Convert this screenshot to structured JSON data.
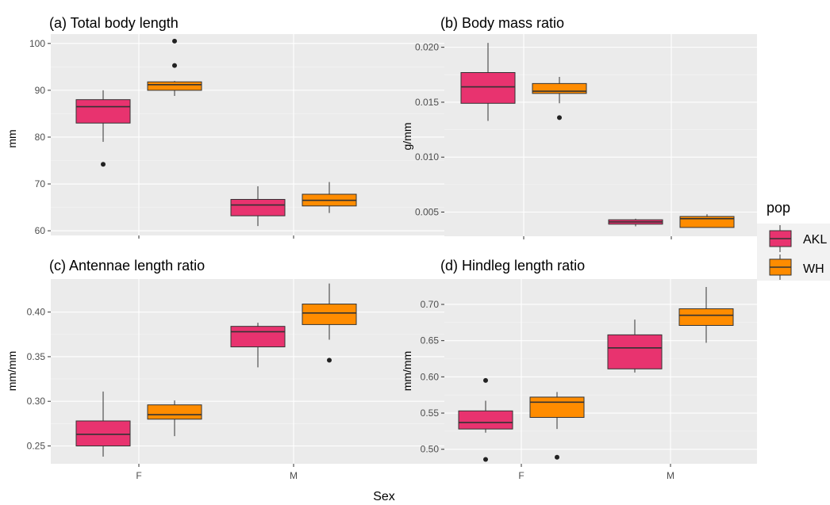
{
  "colors": {
    "AKL": "#E8336F",
    "WH": "#FF8C00",
    "panel_bg": "#EBEBEB",
    "grid_major": "#FFFFFF",
    "grid_minor": "#F5F5F5"
  },
  "legend": {
    "title": "pop",
    "items": [
      "AKL",
      "WH"
    ]
  },
  "xlabel": "Sex",
  "chart_data": [
    {
      "type": "box",
      "title": "(a) Total body length",
      "ylabel": "mm",
      "categories": [
        "F",
        "M"
      ],
      "ylim": [
        59,
        102
      ],
      "yticks": [
        60,
        70,
        80,
        90,
        100
      ],
      "ytick_labels": [
        "60",
        "70",
        "80",
        "90",
        "100"
      ],
      "series": [
        {
          "name": "AKL",
          "boxes": [
            {
              "min": 79,
              "q1": 83,
              "median": 86.5,
              "q3": 88,
              "max": 90,
              "outliers": [
                74.2
              ]
            },
            {
              "min": 61,
              "q1": 63.2,
              "median": 65.5,
              "q3": 66.7,
              "max": 69.5,
              "outliers": []
            }
          ]
        },
        {
          "name": "WH",
          "boxes": [
            {
              "min": 88.8,
              "q1": 90,
              "median": 91.2,
              "q3": 91.8,
              "max": 92,
              "outliers": [
                95.3,
                100.5
              ]
            },
            {
              "min": 63.8,
              "q1": 65.3,
              "median": 66.5,
              "q3": 67.8,
              "max": 70.4,
              "outliers": []
            }
          ]
        }
      ]
    },
    {
      "type": "box",
      "title": "(b) Body mass ratio",
      "ylabel": "g/mm",
      "categories": [
        "F",
        "M"
      ],
      "ylim": [
        0.0028,
        0.0212
      ],
      "yticks": [
        0.005,
        0.01,
        0.015,
        0.02
      ],
      "ytick_labels": [
        "0.005",
        "0.010",
        "0.015",
        "0.020"
      ],
      "series": [
        {
          "name": "AKL",
          "boxes": [
            {
              "min": 0.0133,
              "q1": 0.0149,
              "median": 0.0164,
              "q3": 0.0177,
              "max": 0.0204,
              "outliers": []
            },
            {
              "min": 0.0037,
              "q1": 0.0039,
              "median": 0.0041,
              "q3": 0.0043,
              "max": 0.0044,
              "outliers": []
            }
          ]
        },
        {
          "name": "WH",
          "boxes": [
            {
              "min": 0.0149,
              "q1": 0.0158,
              "median": 0.016,
              "q3": 0.0167,
              "max": 0.0173,
              "outliers": [
                0.0136
              ]
            },
            {
              "min": 0.0036,
              "q1": 0.0036,
              "median": 0.0044,
              "q3": 0.0046,
              "max": 0.0048,
              "outliers": []
            }
          ]
        }
      ]
    },
    {
      "type": "box",
      "title": "(c) Antennae length ratio",
      "ylabel": "mm/mm",
      "categories": [
        "F",
        "M"
      ],
      "ylim": [
        0.23,
        0.437
      ],
      "yticks": [
        0.25,
        0.3,
        0.35,
        0.4
      ],
      "ytick_labels": [
        "0.25",
        "0.30",
        "0.35",
        "0.40"
      ],
      "series": [
        {
          "name": "AKL",
          "boxes": [
            {
              "min": 0.238,
              "q1": 0.25,
              "median": 0.263,
              "q3": 0.278,
              "max": 0.311,
              "outliers": []
            },
            {
              "min": 0.338,
              "q1": 0.361,
              "median": 0.378,
              "q3": 0.384,
              "max": 0.388,
              "outliers": []
            }
          ]
        },
        {
          "name": "WH",
          "boxes": [
            {
              "min": 0.261,
              "q1": 0.28,
              "median": 0.285,
              "q3": 0.296,
              "max": 0.301,
              "outliers": []
            },
            {
              "min": 0.369,
              "q1": 0.386,
              "median": 0.399,
              "q3": 0.409,
              "max": 0.432,
              "outliers": [
                0.346
              ]
            }
          ]
        }
      ]
    },
    {
      "type": "box",
      "title": "(d) Hindleg length ratio",
      "ylabel": "mm/mm",
      "categories": [
        "F",
        "M"
      ],
      "ylim": [
        0.48,
        0.735
      ],
      "yticks": [
        0.5,
        0.55,
        0.6,
        0.65,
        0.7
      ],
      "ytick_labels": [
        "0.50",
        "0.55",
        "0.60",
        "0.65",
        "0.70"
      ],
      "series": [
        {
          "name": "AKL",
          "boxes": [
            {
              "min": 0.523,
              "q1": 0.528,
              "median": 0.537,
              "q3": 0.553,
              "max": 0.567,
              "outliers": [
                0.595,
                0.486
              ]
            },
            {
              "min": 0.606,
              "q1": 0.611,
              "median": 0.64,
              "q3": 0.658,
              "max": 0.679,
              "outliers": []
            }
          ]
        },
        {
          "name": "WH",
          "boxes": [
            {
              "min": 0.528,
              "q1": 0.544,
              "median": 0.565,
              "q3": 0.572,
              "max": 0.579,
              "outliers": [
                0.489
              ]
            },
            {
              "min": 0.647,
              "q1": 0.671,
              "median": 0.685,
              "q3": 0.694,
              "max": 0.724,
              "outliers": []
            }
          ]
        }
      ]
    }
  ]
}
